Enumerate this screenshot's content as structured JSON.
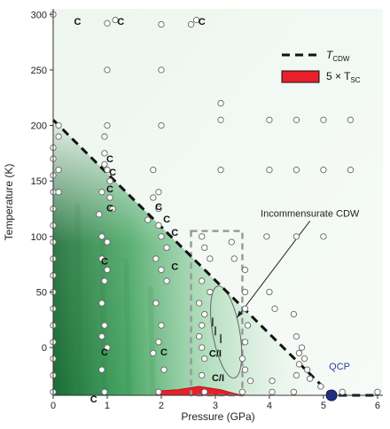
{
  "chart_data": {
    "type": "scatter",
    "xlabel": "Pressure (GPa)",
    "ylabel": "Temperature (K)",
    "xlim": [
      0,
      6.1
    ],
    "ylim": [
      -43,
      305
    ],
    "x_ticks": [
      0,
      1,
      2,
      3,
      4,
      5,
      6
    ],
    "y_ticks": [
      0,
      50,
      100,
      150,
      200,
      250,
      300
    ],
    "grid": false,
    "legend_position": "top-right",
    "legend": [
      {
        "label": "T",
        "sub": "CDW",
        "style": "dashed-line"
      },
      {
        "label": "5 × T",
        "sub": "SC",
        "style": "red-fill"
      }
    ],
    "tcdw_line": [
      [
        0,
        205
      ],
      [
        5.15,
        -43
      ],
      [
        6.0,
        -43
      ]
    ],
    "sc_dome": [
      [
        1.9,
        -43
      ],
      [
        2.0,
        -39
      ],
      [
        2.3,
        -38
      ],
      [
        2.7,
        -35
      ],
      [
        3.1,
        -38
      ],
      [
        3.4,
        -42
      ],
      [
        3.5,
        -43
      ]
    ],
    "incommensurate_ellipse": {
      "cx": 3.2,
      "cy": 14,
      "rx": 0.25,
      "ry": 42,
      "angle": 10
    },
    "dashed_box": {
      "x": [
        2.55,
        3.5
      ],
      "y": [
        -43,
        105
      ]
    },
    "qcp": {
      "x": 5.15,
      "y": -43,
      "label": "QCP"
    },
    "annotations": [
      {
        "text": "Incommensurate CDW",
        "at": [
          4.75,
          118
        ],
        "arrow_to": [
          3.4,
          27
        ]
      }
    ],
    "labels": [
      {
        "text": "C",
        "x": 0.45,
        "y": 294
      },
      {
        "text": "C",
        "x": 1.25,
        "y": 294
      },
      {
        "text": "C",
        "x": 2.75,
        "y": 294
      },
      {
        "text": "C",
        "x": 1.05,
        "y": 170
      },
      {
        "text": "C",
        "x": 1.1,
        "y": 158
      },
      {
        "text": "C",
        "x": 1.05,
        "y": 143
      },
      {
        "text": "C",
        "x": 1.05,
        "y": 126
      },
      {
        "text": "C",
        "x": 1.95,
        "y": 127
      },
      {
        "text": "C",
        "x": 2.1,
        "y": 116
      },
      {
        "text": "C",
        "x": 2.25,
        "y": 104
      },
      {
        "text": "C",
        "x": 0.95,
        "y": 78
      },
      {
        "text": "C",
        "x": 2.25,
        "y": 73
      },
      {
        "text": "C",
        "x": 0.95,
        "y": -4
      },
      {
        "text": "C",
        "x": 2.05,
        "y": -4
      },
      {
        "text": "C",
        "x": 0.75,
        "y": -46
      },
      {
        "text": "C",
        "x": 3.2,
        "y": -46
      },
      {
        "text": "C/I",
        "x": 3.0,
        "y": -5
      },
      {
        "text": "C/I",
        "x": 3.05,
        "y": -27
      }
    ],
    "incommensurate_marks": [
      [
        2.95,
        23
      ],
      [
        3.0,
        15
      ],
      [
        3.1,
        8
      ]
    ],
    "points": [
      [
        0,
        300
      ],
      [
        1,
        292
      ],
      [
        1.15,
        295
      ],
      [
        2,
        291
      ],
      [
        2.55,
        291
      ],
      [
        2.65,
        295
      ],
      [
        1,
        250
      ],
      [
        2,
        250
      ],
      [
        3.1,
        220
      ],
      [
        1,
        200
      ],
      [
        2,
        200
      ],
      [
        3.1,
        205
      ],
      [
        4,
        205
      ],
      [
        4.5,
        205
      ],
      [
        5,
        205
      ],
      [
        5.5,
        205
      ],
      [
        3.1,
        160
      ],
      [
        4,
        160
      ],
      [
        4.5,
        160
      ],
      [
        5,
        160
      ],
      [
        5.5,
        160
      ],
      [
        0,
        180
      ],
      [
        0,
        170
      ],
      [
        0,
        155
      ],
      [
        0,
        140
      ],
      [
        0,
        125
      ],
      [
        0,
        110
      ],
      [
        0,
        95
      ],
      [
        0,
        80
      ],
      [
        0,
        65
      ],
      [
        0,
        50
      ],
      [
        0,
        35
      ],
      [
        0,
        20
      ],
      [
        0,
        5
      ],
      [
        0,
        -10
      ],
      [
        0,
        -25
      ],
      [
        0,
        -40
      ],
      [
        0.1,
        200
      ],
      [
        0.1,
        190
      ],
      [
        0.1,
        160
      ],
      [
        0.1,
        140
      ],
      [
        0.95,
        190
      ],
      [
        0.95,
        175
      ],
      [
        0.95,
        165
      ],
      [
        1.0,
        160
      ],
      [
        1.05,
        150
      ],
      [
        0.9,
        140
      ],
      [
        1.05,
        135
      ],
      [
        1.1,
        125
      ],
      [
        0.85,
        120
      ],
      [
        0.9,
        100
      ],
      [
        1,
        95
      ],
      [
        0.9,
        80
      ],
      [
        1,
        70
      ],
      [
        0.95,
        60
      ],
      [
        0.9,
        40
      ],
      [
        0.95,
        20
      ],
      [
        0.9,
        10
      ],
      [
        1,
        0
      ],
      [
        0.9,
        -20
      ],
      [
        0.95,
        -40
      ],
      [
        1.85,
        160
      ],
      [
        1.95,
        140
      ],
      [
        1.85,
        135
      ],
      [
        1.95,
        125
      ],
      [
        1.75,
        115
      ],
      [
        1.95,
        110
      ],
      [
        2,
        100
      ],
      [
        2.1,
        90
      ],
      [
        1.9,
        80
      ],
      [
        2,
        70
      ],
      [
        2.1,
        60
      ],
      [
        1.9,
        40
      ],
      [
        2,
        20
      ],
      [
        1.95,
        5
      ],
      [
        1.85,
        -5
      ],
      [
        2.05,
        -20
      ],
      [
        1.95,
        -40
      ],
      [
        2.75,
        100
      ],
      [
        2.8,
        90
      ],
      [
        2.9,
        80
      ],
      [
        2.75,
        60
      ],
      [
        2.9,
        50
      ],
      [
        2.7,
        40
      ],
      [
        2.8,
        30
      ],
      [
        2.75,
        20
      ],
      [
        2.7,
        10
      ],
      [
        2.75,
        0
      ],
      [
        2.8,
        -10
      ],
      [
        2.75,
        -25
      ],
      [
        2.8,
        -40
      ],
      [
        3.3,
        95
      ],
      [
        3.35,
        80
      ],
      [
        3.55,
        70
      ],
      [
        3.55,
        50
      ],
      [
        3.55,
        35
      ],
      [
        3.6,
        20
      ],
      [
        3.55,
        5
      ],
      [
        3.5,
        -10
      ],
      [
        3.55,
        -20
      ],
      [
        3.65,
        -30
      ],
      [
        3.5,
        -40
      ],
      [
        3.95,
        100
      ],
      [
        4.5,
        100
      ],
      [
        5.0,
        100
      ],
      [
        4,
        50
      ],
      [
        4.1,
        35
      ],
      [
        4.45,
        30
      ],
      [
        4.5,
        10
      ],
      [
        4.55,
        -5
      ],
      [
        4.55,
        -15
      ],
      [
        4.5,
        -25
      ],
      [
        4.05,
        -30
      ],
      [
        4.05,
        -40
      ],
      [
        4.45,
        -40
      ],
      [
        4.6,
        0
      ],
      [
        4.65,
        -10
      ],
      [
        4.7,
        -20
      ],
      [
        4.75,
        -28
      ],
      [
        4.95,
        -35
      ],
      [
        5.35,
        -40
      ],
      [
        6,
        -40
      ]
    ]
  }
}
